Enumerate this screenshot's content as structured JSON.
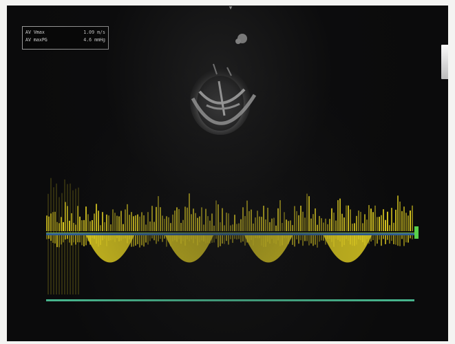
{
  "marker_label": "▾",
  "measurement": {
    "rows": [
      {
        "label": "AV Vmax",
        "value": "1.09 m/s"
      },
      {
        "label": "AV maxPG",
        "value": "4.6 mmHg"
      }
    ]
  },
  "scale_label_top": "",
  "scale_label_bottom": "",
  "colors": {
    "background": "#0b0b0c",
    "doppler": "#e6d321",
    "baseline": "#2f5d92",
    "baseline_bottom": "#47b48c",
    "marker": "#58d04a"
  }
}
